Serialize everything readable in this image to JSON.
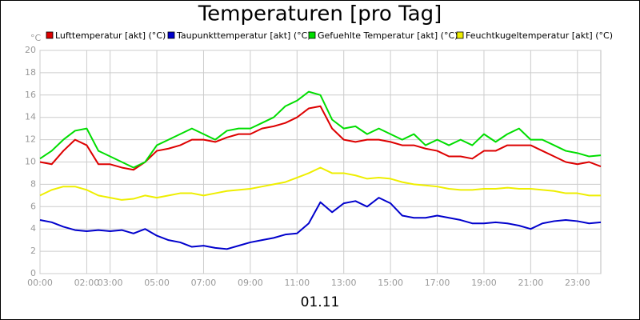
{
  "chart_data": {
    "type": "line",
    "title": "Temperaturen [pro Tag]",
    "subtitle": "01.11",
    "ylabel": "°C",
    "x": [
      0,
      0.5,
      1,
      1.5,
      2,
      2.5,
      3,
      3.5,
      4,
      4.5,
      5,
      5.5,
      6,
      6.5,
      7,
      7.5,
      8,
      8.5,
      9,
      9.5,
      10,
      10.5,
      11,
      11.5,
      12,
      12.5,
      13,
      13.5,
      14,
      14.5,
      15,
      15.5,
      16,
      16.5,
      17,
      17.5,
      18,
      18.5,
      19,
      19.5,
      20,
      20.5,
      21,
      21.5,
      22,
      22.5,
      23,
      23.5,
      24
    ],
    "xlim": [
      0,
      24
    ],
    "xticks": [
      {
        "value": 0,
        "label": "00:00"
      },
      {
        "value": 2,
        "label": "02:00"
      },
      {
        "value": 3,
        "label": "03:00"
      },
      {
        "value": 5,
        "label": "05:00"
      },
      {
        "value": 7,
        "label": "07:00"
      },
      {
        "value": 9,
        "label": "09:00"
      },
      {
        "value": 11,
        "label": "11:00"
      },
      {
        "value": 13,
        "label": "13:00"
      },
      {
        "value": 15,
        "label": "15:00"
      },
      {
        "value": 17,
        "label": "17:00"
      },
      {
        "value": 19,
        "label": "19:00"
      },
      {
        "value": 21,
        "label": "21:00"
      },
      {
        "value": 23,
        "label": "23:00"
      }
    ],
    "ylim": [
      0,
      20
    ],
    "yticks": [
      0,
      2,
      4,
      6,
      8,
      10,
      12,
      14,
      16,
      18,
      20
    ],
    "grid": true,
    "series": [
      {
        "name": "Lufttemperatur [akt] (°C)",
        "color": "#dd0000",
        "values": [
          10,
          9.8,
          11,
          12,
          11.5,
          9.8,
          9.8,
          9.5,
          9.3,
          10,
          11,
          11.2,
          11.5,
          12,
          12,
          11.8,
          12.2,
          12.5,
          12.5,
          13,
          13.2,
          13.5,
          14,
          14.8,
          15,
          13,
          12,
          11.8,
          12,
          12,
          11.8,
          11.5,
          11.5,
          11.2,
          11,
          10.5,
          10.5,
          10.3,
          11,
          11,
          11.5,
          11.5,
          11.5,
          11,
          10.5,
          10,
          9.8,
          10,
          9.6
        ]
      },
      {
        "name": "Taupunkttemperatur [akt] (°C)",
        "color": "#0000cc",
        "values": [
          4.8,
          4.6,
          4.2,
          3.9,
          3.8,
          3.9,
          3.8,
          3.9,
          3.6,
          4,
          3.4,
          3,
          2.8,
          2.4,
          2.5,
          2.3,
          2.2,
          2.5,
          2.8,
          3,
          3.2,
          3.5,
          3.6,
          4.5,
          6.4,
          5.5,
          6.3,
          6.5,
          6,
          6.8,
          6.3,
          5.2,
          5,
          5,
          5.2,
          5,
          4.8,
          4.5,
          4.5,
          4.6,
          4.5,
          4.3,
          4,
          4.5,
          4.7,
          4.8,
          4.7,
          4.5,
          4.6
        ]
      },
      {
        "name": "Gefuehlte Temperatur [akt] (°C)",
        "color": "#00dd00",
        "values": [
          10.3,
          11,
          12,
          12.8,
          13,
          11,
          10.5,
          10,
          9.5,
          10,
          11.5,
          12,
          12.5,
          13,
          12.5,
          12,
          12.8,
          13,
          13,
          13.5,
          14,
          15,
          15.5,
          16.3,
          16,
          13.8,
          13,
          13.2,
          12.5,
          13,
          12.5,
          12,
          12.5,
          11.5,
          12,
          11.5,
          12,
          11.5,
          12.5,
          11.8,
          12.5,
          13,
          12,
          12,
          11.5,
          11,
          10.8,
          10.5,
          10.6
        ]
      },
      {
        "name": "Feuchtkugeltemperatur [akt] (°C)",
        "color": "#eeee00",
        "values": [
          7,
          7.5,
          7.8,
          7.8,
          7.5,
          7,
          6.8,
          6.6,
          6.7,
          7,
          6.8,
          7,
          7.2,
          7.2,
          7,
          7.2,
          7.4,
          7.5,
          7.6,
          7.8,
          8,
          8.2,
          8.6,
          9,
          9.5,
          9,
          9,
          8.8,
          8.5,
          8.6,
          8.5,
          8.2,
          8,
          7.9,
          7.8,
          7.6,
          7.5,
          7.5,
          7.6,
          7.6,
          7.7,
          7.6,
          7.6,
          7.5,
          7.4,
          7.2,
          7.2,
          7,
          7
        ]
      }
    ]
  }
}
